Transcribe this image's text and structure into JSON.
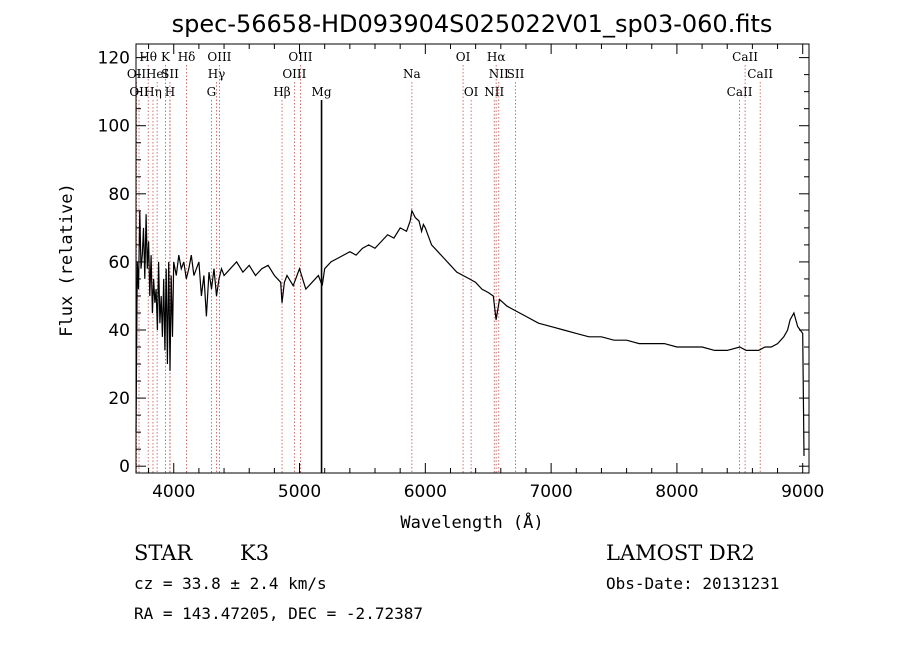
{
  "chart_data": {
    "type": "line",
    "title": "spec-56658-HD093904S025022V01_sp03-060.fits",
    "xlabel": "Wavelength (Å)",
    "ylabel": "Flux (relative)",
    "xlim": [
      3700,
      9050
    ],
    "ylim": [
      -2,
      124
    ],
    "x_ticks": [
      4000,
      5000,
      6000,
      7000,
      8000,
      9000
    ],
    "y_ticks": [
      0,
      20,
      40,
      60,
      80,
      100,
      120
    ],
    "grid": false,
    "line_color": "#000000",
    "marker_color": "#c0504d",
    "strong_marker_color": "#000000",
    "series": [
      {
        "x": [
          3700,
          3710,
          3720,
          3730,
          3740,
          3750,
          3760,
          3770,
          3780,
          3790,
          3800,
          3810,
          3820,
          3830,
          3840,
          3850,
          3860,
          3870,
          3880,
          3890,
          3900,
          3910,
          3920,
          3930,
          3940,
          3950,
          3960,
          3970,
          3980,
          3990,
          4000,
          4020,
          4040,
          4060,
          4080,
          4100,
          4120,
          4140,
          4160,
          4180,
          4200,
          4220,
          4240,
          4260,
          4280,
          4300,
          4320,
          4340,
          4360,
          4380,
          4400,
          4450,
          4500,
          4550,
          4600,
          4650,
          4700,
          4750,
          4800,
          4850,
          4861,
          4880,
          4900,
          4950,
          5000,
          5050,
          5100,
          5150,
          5180,
          5200,
          5250,
          5300,
          5350,
          5400,
          5450,
          5500,
          5550,
          5600,
          5650,
          5700,
          5750,
          5800,
          5850,
          5880,
          5893,
          5920,
          5950,
          5970,
          5985,
          6000,
          6020,
          6050,
          6100,
          6150,
          6200,
          6250,
          6300,
          6350,
          6400,
          6450,
          6500,
          6540,
          6563,
          6590,
          6620,
          6650,
          6700,
          6750,
          6800,
          6900,
          7000,
          7100,
          7200,
          7300,
          7400,
          7500,
          7600,
          7700,
          7800,
          7900,
          8000,
          8100,
          8200,
          8300,
          8400,
          8500,
          8550,
          8600,
          8650,
          8700,
          8750,
          8800,
          8850,
          8880,
          8900,
          8930,
          8960,
          8980,
          9000,
          9010
        ],
        "y": [
          10,
          60,
          52,
          75,
          58,
          62,
          70,
          55,
          74,
          58,
          66,
          50,
          62,
          45,
          55,
          48,
          52,
          40,
          60,
          42,
          50,
          38,
          55,
          34,
          58,
          30,
          60,
          28,
          56,
          38,
          60,
          56,
          62,
          58,
          60,
          55,
          58,
          62,
          56,
          58,
          60,
          50,
          56,
          44,
          57,
          52,
          58,
          50,
          55,
          58,
          56,
          58,
          60,
          57,
          59,
          56,
          58,
          59,
          56,
          54,
          48,
          54,
          56,
          53,
          58,
          52,
          54,
          56,
          53,
          58,
          60,
          61,
          62,
          63,
          62,
          64,
          65,
          64,
          66,
          68,
          67,
          70,
          69,
          72,
          75,
          73,
          72,
          69,
          71,
          70,
          68,
          65,
          63,
          61,
          59,
          57,
          56,
          55,
          54,
          52,
          51,
          50,
          43,
          49,
          48,
          47,
          46,
          45,
          44,
          42,
          41,
          40,
          39,
          38,
          38,
          37,
          37,
          36,
          36,
          36,
          35,
          35,
          35,
          34,
          34,
          35,
          34,
          34,
          34,
          35,
          35,
          36,
          38,
          40,
          43,
          45,
          41,
          40,
          39,
          3
        ]
      }
    ],
    "line_markers": [
      {
        "x": 3704,
        "label": "OII",
        "row": 2,
        "strong": false
      },
      {
        "x": 3724,
        "label": "OII",
        "row": 3,
        "strong": false
      },
      {
        "x": 3797,
        "label": "Hθ",
        "row": 1,
        "strong": false
      },
      {
        "x": 3835,
        "label": "Hη",
        "row": 3,
        "strong": false
      },
      {
        "x": 3868,
        "label": "HeI",
        "row": 2,
        "strong": false
      },
      {
        "x": 3934,
        "label": "K",
        "row": 1,
        "strong": false
      },
      {
        "x": 3970,
        "label": "SII",
        "row": 2,
        "strong": false
      },
      {
        "x": 3970,
        "label": "H",
        "row": 3,
        "strong": false
      },
      {
        "x": 4102,
        "label": "Hδ",
        "row": 1,
        "strong": false
      },
      {
        "x": 4300,
        "label": "G",
        "row": 3,
        "strong": false
      },
      {
        "x": 4340,
        "label": "Hγ",
        "row": 2,
        "strong": false
      },
      {
        "x": 4363,
        "label": "OIII",
        "row": 1,
        "strong": false
      },
      {
        "x": 4861,
        "label": "Hβ",
        "row": 3,
        "strong": false
      },
      {
        "x": 4959,
        "label": "OIII",
        "row": 2,
        "strong": false
      },
      {
        "x": 5007,
        "label": "OIII",
        "row": 1,
        "strong": false
      },
      {
        "x": 5175,
        "label": "Mg",
        "row": 3,
        "strong": true
      },
      {
        "x": 5893,
        "label": "Na",
        "row": 2,
        "strong": false
      },
      {
        "x": 6300,
        "label": "OI",
        "row": 1,
        "strong": false
      },
      {
        "x": 6364,
        "label": "OI",
        "row": 3,
        "strong": false
      },
      {
        "x": 6548,
        "label": "NII",
        "row": 3,
        "strong": false
      },
      {
        "x": 6563,
        "label": "Hα",
        "row": 1,
        "strong": false
      },
      {
        "x": 6584,
        "label": "NII",
        "row": 2,
        "strong": false
      },
      {
        "x": 6717,
        "label": "SII",
        "row": 2,
        "strong": false
      },
      {
        "x": 8498,
        "label": "CaII",
        "row": 3,
        "strong": false
      },
      {
        "x": 8542,
        "label": "CaII",
        "row": 1,
        "strong": false
      },
      {
        "x": 8662,
        "label": "CaII",
        "row": 2,
        "strong": false
      }
    ]
  },
  "info": {
    "class": "STAR",
    "subclass": "K3",
    "survey": "LAMOST DR2",
    "redshift": "cz = 33.8 ± 2.4 km/s",
    "obs_date": "Obs-Date: 20131231",
    "coords": "RA = 143.47205, DEC =  -2.72387"
  }
}
